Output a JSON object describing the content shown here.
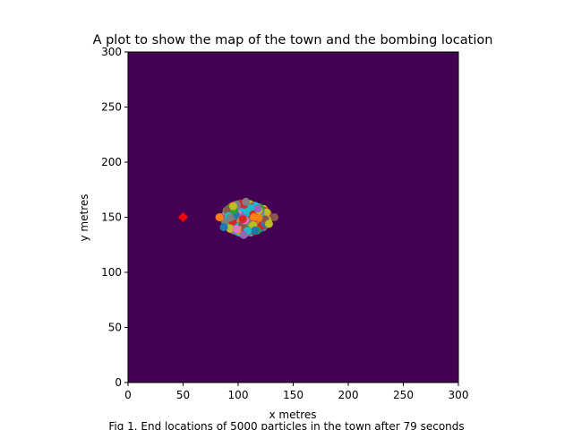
{
  "chart_data": {
    "type": "scatter",
    "title": "A plot to show the map of the town and the bombing location",
    "xlabel": "x metres",
    "ylabel": "y metres",
    "caption": "Fig 1. End locations of 5000 particles in the town after 79 seconds",
    "xlim": [
      0,
      300
    ],
    "ylim": [
      0,
      300
    ],
    "xticks": [
      0,
      50,
      100,
      150,
      200,
      250,
      300
    ],
    "yticks": [
      0,
      50,
      100,
      150,
      200,
      250,
      300
    ],
    "grid": false,
    "legend": "none",
    "background_color": "#440154",
    "bombing_location": {
      "x": 50,
      "y": 150,
      "marker": "diamond",
      "color": "#ff0000"
    },
    "particle_cluster": {
      "x_range": [
        83,
        133
      ],
      "y_range": [
        134,
        164
      ],
      "center": [
        105,
        150
      ]
    },
    "particle_colors": [
      "#1f77b4",
      "#ff7f0e",
      "#2ca02c",
      "#d62728",
      "#9467bd",
      "#8c564b",
      "#e377c2",
      "#7f7f7f",
      "#bcbd22",
      "#17becf"
    ]
  }
}
